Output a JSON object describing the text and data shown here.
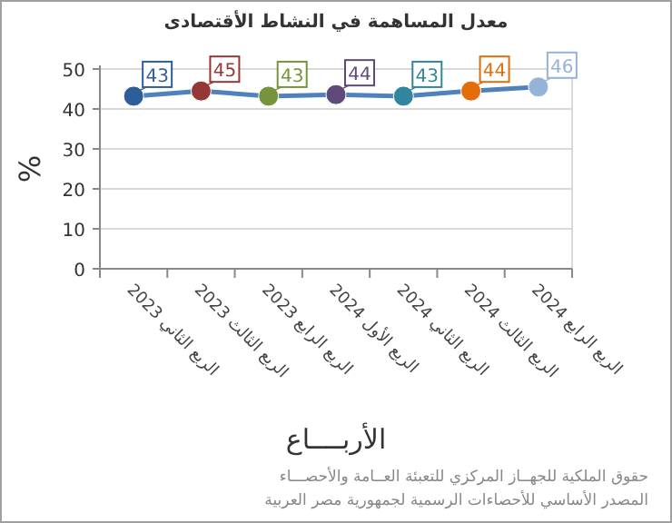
{
  "chart_data": {
    "type": "line",
    "title": "معدل المساهمة في النشاط الأقتصادى",
    "xlabel": "الأربــــاع",
    "ylabel": "%",
    "categories": [
      "الربع الثاني 2023",
      "الربع الثالث 2023",
      "الربع الرابع 2023",
      "الربع الأول 2024",
      "الربع الثاني 2024",
      "الربع الثالث 2024",
      "الربع الرابع 2024"
    ],
    "series": [
      {
        "color": "#4f81bd",
        "colors": [
          "#2e5e9a",
          "#953735",
          "#77933c",
          "#604a7b",
          "#31859c",
          "#e46c0a",
          "#95b3d7"
        ],
        "values": [
          43.2,
          44.5,
          43.2,
          43.6,
          43.2,
          44.5,
          45.5
        ],
        "value_labels": [
          "43",
          "45",
          "43",
          "44",
          "43",
          "44",
          "46"
        ]
      }
    ],
    "ylim": [
      0,
      50
    ],
    "yticks": [
      0,
      10,
      20,
      30,
      40,
      50
    ],
    "grid": "y",
    "marker": "circle",
    "line_style": "solid",
    "annotations": [
      "حقوق الملكية للجهــاز المركزي للتعبئة العــامة والأحصـــاء",
      "المصدر الأساسي للأحصاءات الرسمية لجمهورية مصر العربية"
    ]
  }
}
